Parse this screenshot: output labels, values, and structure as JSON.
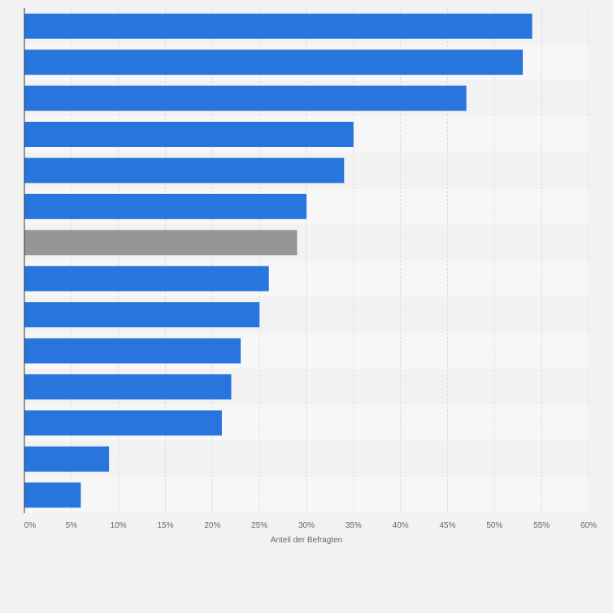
{
  "chart_data": {
    "type": "bar",
    "orientation": "horizontal",
    "categories": [
      "",
      "",
      "",
      "",
      "",
      "",
      "",
      "",
      "",
      "",
      "",
      "",
      "",
      ""
    ],
    "values": [
      54,
      53,
      47,
      35,
      34,
      30,
      29,
      26,
      25,
      23,
      22,
      21,
      9,
      6
    ],
    "unit": "%",
    "highlight_index": 6,
    "xlabel": "Anteil der Befragten",
    "ylabel": "",
    "xlim": [
      0,
      60
    ],
    "x_ticks": [
      "0%",
      "5%",
      "10%",
      "15%",
      "20%",
      "25%",
      "30%",
      "35%",
      "40%",
      "45%",
      "50%",
      "55%",
      "60%"
    ],
    "grid": true,
    "colors": {
      "bar": "#2876dd",
      "highlight": "#969696",
      "band_light": "#f7f7f7",
      "band_dark": "#f2f2f2",
      "gridline": "#dcdcdc",
      "axis": "#333333"
    }
  }
}
